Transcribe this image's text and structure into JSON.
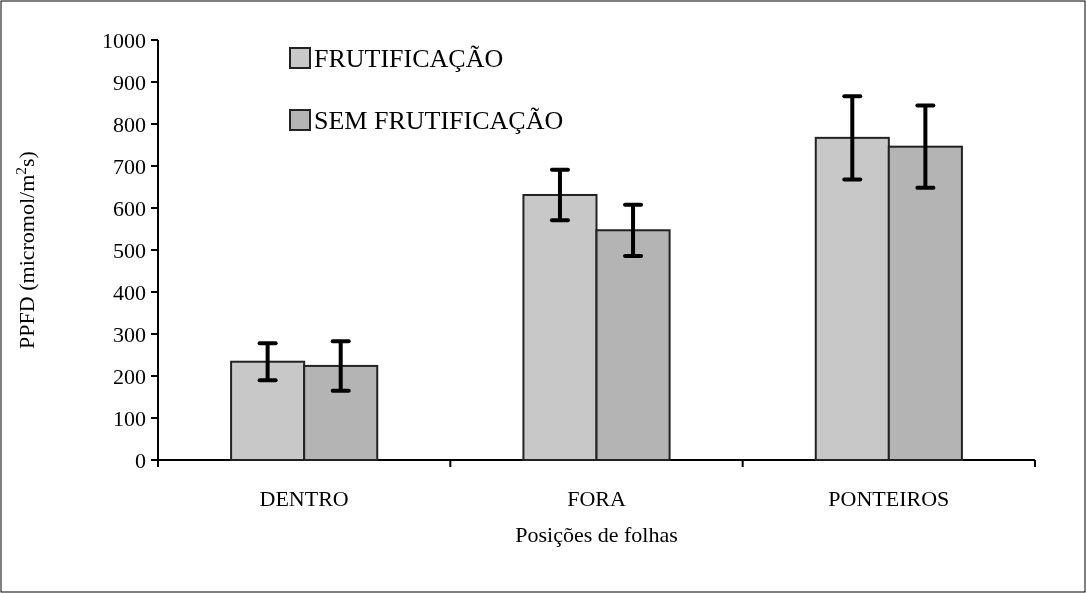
{
  "chart_data": {
    "type": "bar",
    "xlabel": "Posições de folhas",
    "ylabel": "PPFD (micromol/m$^{2}$s)",
    "categories": [
      "DENTRO",
      "FORA",
      "PONTEIROS"
    ],
    "series": [
      {
        "name": "FRUTIFICAÇÃO",
        "color": "#c8c8c8",
        "values": [
          234,
          631,
          767
        ],
        "errors": [
          44,
          60,
          99
        ]
      },
      {
        "name": "SEM FRUTIFICAÇÃO",
        "color": "#b4b4b4",
        "values": [
          224,
          547,
          746
        ],
        "errors": [
          59,
          61,
          98
        ]
      }
    ],
    "ylim": [
      0,
      1000
    ],
    "yticks": [
      0,
      100,
      200,
      300,
      400,
      500,
      600,
      700,
      800,
      900,
      1000
    ],
    "grid": false,
    "legend": "top left"
  }
}
